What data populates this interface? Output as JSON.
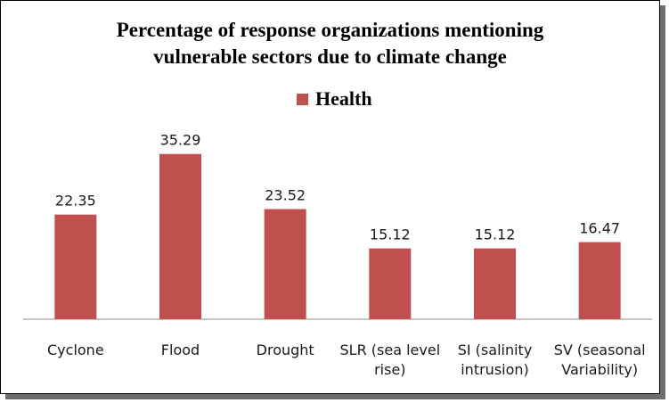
{
  "chart_data": {
    "type": "bar",
    "title_lines": [
      "Percentage of response organizations mentioning",
      "vulnerable sectors due to climate change"
    ],
    "categories": [
      [
        "Cyclone"
      ],
      [
        "Flood"
      ],
      [
        "Drought"
      ],
      [
        "SLR (sea level",
        "rise)"
      ],
      [
        "SI (salinity",
        "intrusion)"
      ],
      [
        "SV (seasonal",
        "Variability)"
      ]
    ],
    "series": [
      {
        "name": "Health",
        "color": "#c0504d",
        "values": [
          22.35,
          35.29,
          23.52,
          15.12,
          15.12,
          16.47
        ],
        "value_labels": [
          "22.35",
          "35.29",
          "23.52",
          "15.12",
          "15.12",
          "16.47"
        ]
      }
    ],
    "ylim": [
      0,
      40
    ],
    "grid": false,
    "legend_position": "top-center",
    "show_y_axis": false
  }
}
